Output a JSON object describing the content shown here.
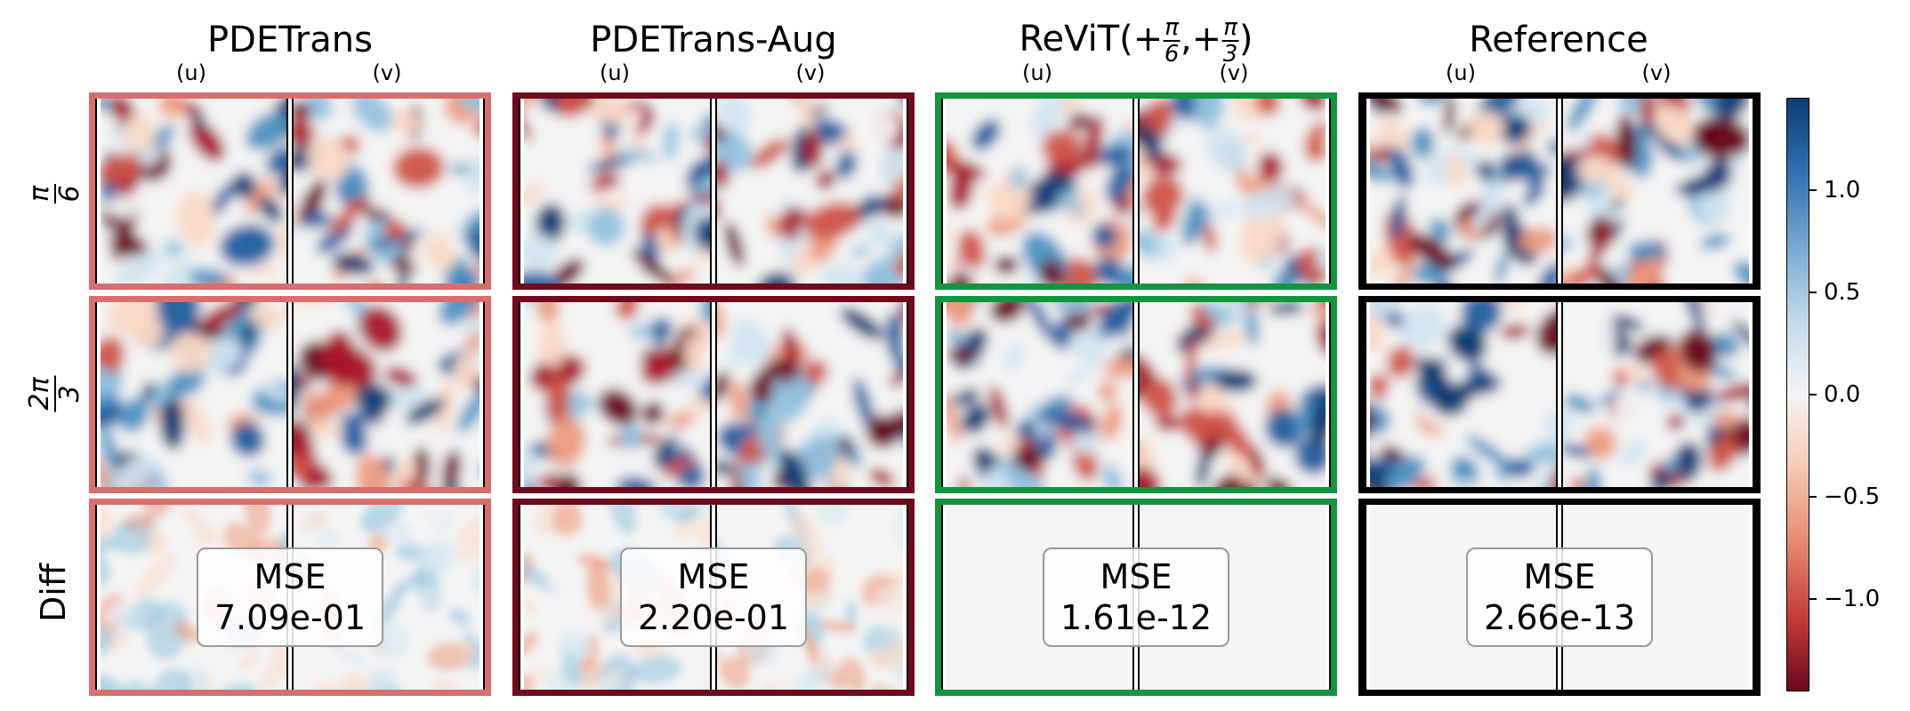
{
  "columns": [
    {
      "title": "PDETrans",
      "border_color": "#d86f6f",
      "u_label": "(u)",
      "v_label": "(v)",
      "mse_label": "MSE",
      "mse_value": "7.09e-01"
    },
    {
      "title": "PDETrans-Aug",
      "border_color": "#6e0c1d",
      "u_label": "(u)",
      "v_label": "(v)",
      "mse_label": "MSE",
      "mse_value": "2.20e-01"
    },
    {
      "title_prefix": "ReViT(+",
      "title_sep": ",+",
      "title_suffix": ")",
      "frac1_num": "π",
      "frac1_den": "6",
      "frac2_num": "π",
      "frac2_den": "3",
      "border_color": "#14943f",
      "u_label": "(u)",
      "v_label": "(v)",
      "mse_label": "MSE",
      "mse_value": "1.61e-12"
    },
    {
      "title": "Reference",
      "border_color": "#000000",
      "u_label": "(u)",
      "v_label": "(v)",
      "mse_label": "MSE",
      "mse_value": "2.66e-13"
    }
  ],
  "rows": [
    {
      "label_num": "π",
      "label_den": "6"
    },
    {
      "label_num": "2π",
      "label_den": "3"
    },
    {
      "label": "Diff"
    }
  ],
  "colorbar": {
    "ticks": [
      "1.0",
      "0.5",
      "0.0",
      "−0.5",
      "−1.0"
    ],
    "colormap": "RdBu",
    "colors": {
      "top": "#0b3c73",
      "mid": "#f4f4f4",
      "bottom": "#69061f"
    }
  }
}
